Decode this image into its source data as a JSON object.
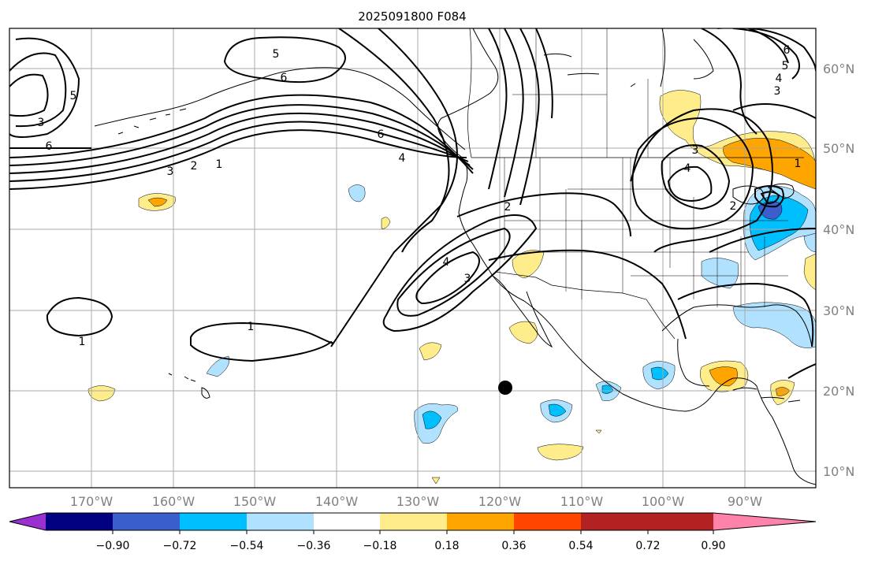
{
  "title": "2025091800 F084",
  "map": {
    "lon_labels": [
      "170°W",
      "160°W",
      "150°W",
      "140°W",
      "130°W",
      "120°W",
      "110°W",
      "100°W",
      "90°W"
    ],
    "lat_labels": [
      "60°N",
      "50°N",
      "40°N",
      "30°N",
      "20°N",
      "10°N"
    ],
    "contour_labels": [
      "5",
      "6",
      "5",
      "3",
      "6",
      "3",
      "2",
      "1",
      "6",
      "4",
      "2",
      "4",
      "3",
      "1",
      "1",
      "4",
      "3",
      "2",
      "6",
      "5",
      "4",
      "3",
      "1"
    ],
    "marker": {
      "lon": -118.5,
      "lat": 20.3
    }
  },
  "colorbar": {
    "tick_labels": [
      "−0.90",
      "−0.72",
      "−0.54",
      "−0.36",
      "−0.18",
      "0.18",
      "0.36",
      "0.54",
      "0.72",
      "0.90"
    ],
    "colors": [
      "#9b30d0",
      "#000080",
      "#3a5fcd",
      "#00bfff",
      "#b0e2ff",
      "#ffffff",
      "#ffec8b",
      "#ffa500",
      "#ff4500",
      "#b22222",
      "#ff82ab"
    ]
  }
}
